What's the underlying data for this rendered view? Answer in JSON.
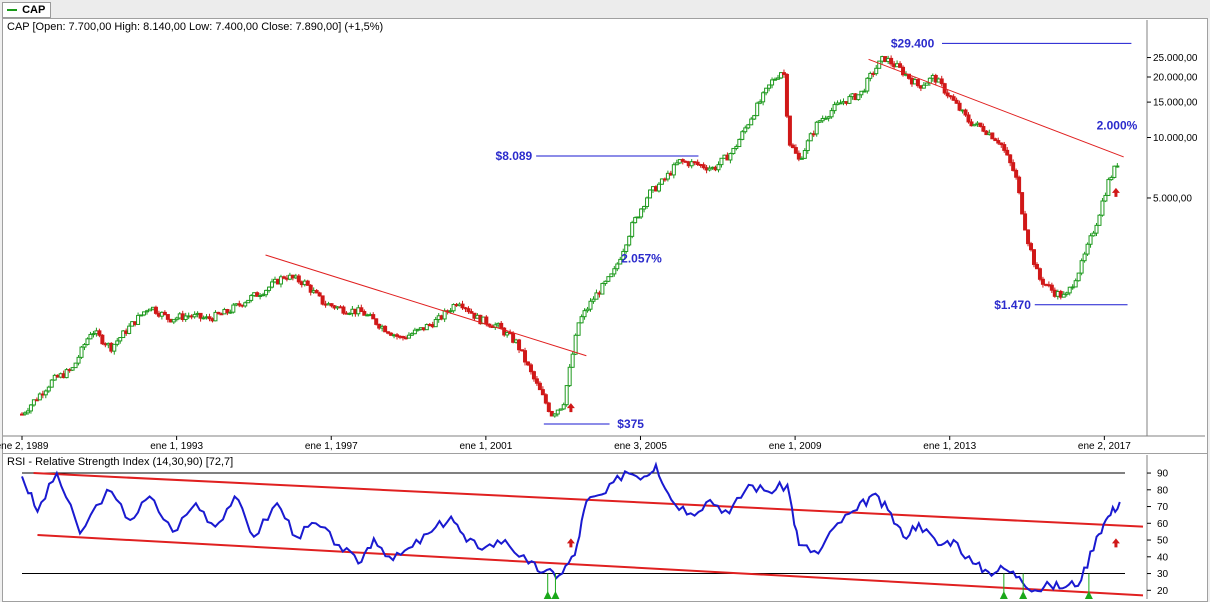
{
  "tab": {
    "label": "CAP"
  },
  "price_pane": {
    "title": "CAP [Open: 7.700,00  High: 8.140,00  Low: 7.400,00  Close: 7.890,00] (+1,5%)"
  },
  "rsi_pane": {
    "title": "RSI - Relative Strength Index (14,30,90) [72,7]"
  },
  "colors": {
    "up_candle": "#1f9a1f",
    "down_candle": "#d01818",
    "rsi_line": "#1a1ad0",
    "trendline": "#e02020",
    "annotation": "#2b2bcc",
    "level_line": "#1a1ad0",
    "signal_green": "#1aa81a",
    "signal_red": "#d01818"
  },
  "chart_data": [
    {
      "type": "candlestick",
      "title": "CAP [Open: 7.700,00  High: 8.140,00  Low: 7.400,00  Close: 7.890,00] (+1,5%)",
      "scale": "log",
      "ylim": [
        350,
        32000
      ],
      "xlim": [
        1989.0,
        2018.0
      ],
      "x_tick_labels": [
        "ene 2, 1989",
        "ene 1, 1993",
        "ene 1, 1997",
        "ene 1, 2001",
        "ene 3, 2005",
        "ene 1, 2009",
        "ene 1, 2013",
        "ene 2, 2017"
      ],
      "x_ticks": [
        1989.0,
        1993.0,
        1997.0,
        2001.0,
        2005.0,
        2009.0,
        2013.0,
        2017.0
      ],
      "y_tick_labels": [
        "25.000,00",
        "20.000,00",
        "15.000,00",
        "10.000,00",
        "5.000,00"
      ],
      "y_ticks": [
        25000,
        20000,
        15000,
        10000,
        5000
      ],
      "last": {
        "open": 7700,
        "high": 8140,
        "low": 7400,
        "close": 7890
      },
      "price_path": [
        [
          1989.0,
          420
        ],
        [
          1989.8,
          620
        ],
        [
          1990.3,
          700
        ],
        [
          1990.8,
          1100
        ],
        [
          1991.3,
          900
        ],
        [
          1991.8,
          1150
        ],
        [
          1992.3,
          1450
        ],
        [
          1992.8,
          1250
        ],
        [
          1993.3,
          1300
        ],
        [
          1993.8,
          1250
        ],
        [
          1994.3,
          1350
        ],
        [
          1994.8,
          1550
        ],
        [
          1995.3,
          1750
        ],
        [
          1995.8,
          2050
        ],
        [
          1996.3,
          1900
        ],
        [
          1996.8,
          1500
        ],
        [
          1997.3,
          1400
        ],
        [
          1997.8,
          1350
        ],
        [
          1998.3,
          1150
        ],
        [
          1998.8,
          1000
        ],
        [
          1999.3,
          1100
        ],
        [
          1999.8,
          1250
        ],
        [
          2000.3,
          1550
        ],
        [
          2000.8,
          1250
        ],
        [
          2001.3,
          1150
        ],
        [
          2001.8,
          950
        ],
        [
          2002.2,
          650
        ],
        [
          2002.7,
          420
        ],
        [
          2003.0,
          470
        ],
        [
          2003.4,
          1200
        ],
        [
          2003.8,
          1600
        ],
        [
          2004.3,
          2100
        ],
        [
          2004.8,
          3700
        ],
        [
          2005.2,
          5200
        ],
        [
          2005.6,
          6100
        ],
        [
          2006.0,
          7600
        ],
        [
          2006.4,
          7400
        ],
        [
          2006.9,
          7000
        ],
        [
          2007.4,
          8600
        ],
        [
          2007.9,
          13000
        ],
        [
          2008.4,
          19000
        ],
        [
          2008.7,
          22000
        ],
        [
          2008.85,
          9500
        ],
        [
          2009.1,
          7700
        ],
        [
          2009.6,
          12000
        ],
        [
          2010.2,
          15000
        ],
        [
          2010.7,
          16500
        ],
        [
          2011.0,
          21000
        ],
        [
          2011.3,
          25000
        ],
        [
          2011.7,
          22000
        ],
        [
          2012.2,
          18000
        ],
        [
          2012.6,
          20000
        ],
        [
          2013.0,
          16000
        ],
        [
          2013.5,
          12000
        ],
        [
          2013.9,
          11000
        ],
        [
          2014.3,
          9500
        ],
        [
          2014.7,
          6500
        ],
        [
          2015.0,
          3200
        ],
        [
          2015.3,
          2000
        ],
        [
          2015.7,
          1700
        ],
        [
          2016.0,
          1600
        ],
        [
          2016.4,
          2300
        ],
        [
          2016.8,
          3800
        ],
        [
          2017.1,
          6000
        ],
        [
          2017.4,
          7890
        ]
      ],
      "annotations": [
        {
          "text": "$29.400",
          "x": 2011.5,
          "y": 29400
        },
        {
          "text": "$8.089",
          "x": 2006.0,
          "y": 8089
        },
        {
          "text": "2.000%",
          "x": 2016.8,
          "y": 11500
        },
        {
          "text": "2.057%",
          "x": 2004.5,
          "y": 2500
        },
        {
          "text": "$1.470",
          "x": 2015.2,
          "y": 1470
        },
        {
          "text": "$375",
          "x": 2003.2,
          "y": 375
        }
      ],
      "horizontal_levels": [
        {
          "y": 29400,
          "x": [
            2012.8,
            2017.7
          ]
        },
        {
          "y": 8089,
          "x": [
            2002.3,
            2006.5
          ]
        },
        {
          "y": 1470,
          "x": [
            2015.2,
            2017.6
          ]
        },
        {
          "y": 375,
          "x": [
            2002.5,
            2004.2
          ]
        }
      ],
      "trendlines": [
        {
          "from": [
            1995.3,
            2600
          ],
          "to": [
            2003.6,
            820
          ]
        },
        {
          "from": [
            2010.9,
            24500
          ],
          "to": [
            2017.5,
            8000
          ]
        }
      ],
      "signals": [
        {
          "type": "buy-arrow",
          "x": 2003.2,
          "y": 450,
          "color": "red"
        },
        {
          "type": "buy-arrow",
          "x": 2017.3,
          "y": 5300,
          "color": "red"
        }
      ]
    },
    {
      "type": "line",
      "title": "RSI - Relative Strength Index (14,30,90) [72,7]",
      "ylim": [
        16,
        96
      ],
      "xlim": [
        1989.0,
        2018.0
      ],
      "y_tick_labels": [
        "90",
        "80",
        "70",
        "60",
        "50",
        "40",
        "30",
        "20"
      ],
      "y_ticks": [
        90,
        80,
        70,
        60,
        50,
        40,
        30,
        20
      ],
      "levels": [
        90,
        30
      ],
      "last_value": 72.7,
      "series": [
        {
          "values": [
            [
              1989.0,
              88
            ],
            [
              1989.4,
              67
            ],
            [
              1989.9,
              90
            ],
            [
              1990.5,
              54
            ],
            [
              1991.2,
              80
            ],
            [
              1991.8,
              62
            ],
            [
              1992.3,
              76
            ],
            [
              1992.9,
              55
            ],
            [
              1993.5,
              72
            ],
            [
              1994.0,
              58
            ],
            [
              1994.5,
              76
            ],
            [
              1995.0,
              52
            ],
            [
              1995.6,
              72
            ],
            [
              1996.1,
              52
            ],
            [
              1996.6,
              60
            ],
            [
              1997.2,
              47
            ],
            [
              1997.7,
              36
            ],
            [
              1998.1,
              51
            ],
            [
              1998.6,
              38
            ],
            [
              1999.1,
              46
            ],
            [
              1999.6,
              55
            ],
            [
              2000.1,
              64
            ],
            [
              2000.5,
              49
            ],
            [
              2001.0,
              46
            ],
            [
              2001.5,
              50
            ],
            [
              2002.1,
              36
            ],
            [
              2002.5,
              31
            ],
            [
              2002.9,
              29
            ],
            [
              2003.3,
              41
            ],
            [
              2003.6,
              73
            ],
            [
              2004.1,
              78
            ],
            [
              2004.6,
              91
            ],
            [
              2005.1,
              88
            ],
            [
              2005.4,
              95
            ],
            [
              2005.8,
              74
            ],
            [
              2006.3,
              66
            ],
            [
              2006.8,
              74
            ],
            [
              2007.3,
              66
            ],
            [
              2007.8,
              83
            ],
            [
              2008.3,
              79
            ],
            [
              2008.8,
              83
            ],
            [
              2009.1,
              47
            ],
            [
              2009.6,
              42
            ],
            [
              2010.1,
              60
            ],
            [
              2010.6,
              68
            ],
            [
              2011.0,
              77
            ],
            [
              2011.4,
              68
            ],
            [
              2011.8,
              52
            ],
            [
              2012.2,
              60
            ],
            [
              2012.7,
              47
            ],
            [
              2013.1,
              50
            ],
            [
              2013.6,
              36
            ],
            [
              2014.0,
              31
            ],
            [
              2014.4,
              33
            ],
            [
              2014.8,
              28
            ],
            [
              2015.2,
              20
            ],
            [
              2015.6,
              23
            ],
            [
              2016.0,
              22
            ],
            [
              2016.4,
              26
            ],
            [
              2016.8,
              52
            ],
            [
              2017.1,
              64
            ],
            [
              2017.4,
              72.7
            ]
          ]
        }
      ],
      "trend_channels": [
        {
          "from": [
            1989.3,
            90
          ],
          "to": [
            2018.0,
            58
          ]
        },
        {
          "from": [
            1989.4,
            53
          ],
          "to": [
            2018.0,
            17
          ]
        }
      ],
      "markers": [
        {
          "type": "green-triangle",
          "x": 2002.6
        },
        {
          "type": "green-triangle",
          "x": 2002.8
        },
        {
          "type": "green-triangle",
          "x": 2014.4
        },
        {
          "type": "green-triangle",
          "x": 2014.9
        },
        {
          "type": "green-triangle",
          "x": 2016.6
        },
        {
          "type": "red-arrow-up",
          "x": 2003.2,
          "y": 48
        },
        {
          "type": "red-arrow-up",
          "x": 2017.3,
          "y": 48
        }
      ]
    }
  ]
}
